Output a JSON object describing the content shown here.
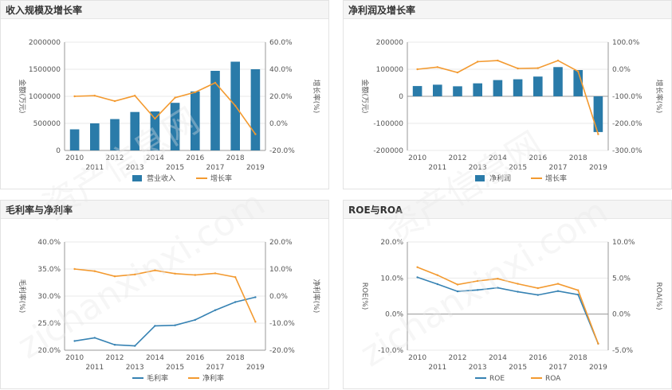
{
  "watermark": {
    "site": "zichanxinxi.com",
    "brand": "资产信息网"
  },
  "colors": {
    "bar": "#2a7ba9",
    "orange": "#f39a30",
    "blue": "#3682b3",
    "axis": "#9a9a9a",
    "grid": "#eaeaea",
    "text": "#555555"
  },
  "chart_data": [
    {
      "type": "bar",
      "title": "收入规模及增长率",
      "categories": [
        "2010",
        "2011",
        "2012",
        "2013",
        "2014",
        "2015",
        "2016",
        "2017",
        "2018",
        "2019"
      ],
      "ylabel": "金额(万元)",
      "y2label": "增长率(%)",
      "ylim": [
        0,
        2000000
      ],
      "y2lim": [
        -20,
        60
      ],
      "y_ticks": [
        "0",
        "500000",
        "1000000",
        "1500000",
        "2000000"
      ],
      "y2_ticks": [
        "-20.0%",
        "0.0%",
        "20.0%",
        "40.0%",
        "60.0%"
      ],
      "series": [
        {
          "name": "营业收入",
          "kind": "bar",
          "axis": "left",
          "values": [
            390000,
            500000,
            580000,
            710000,
            720000,
            880000,
            1090000,
            1470000,
            1640000,
            1500000
          ]
        },
        {
          "name": "增长率",
          "kind": "line",
          "axis": "right",
          "values": [
            20,
            20.5,
            16.5,
            20.5,
            3.5,
            19,
            23,
            30,
            13,
            -8
          ]
        }
      ],
      "legend": "bottom",
      "grid": true
    },
    {
      "type": "bar",
      "title": "净利润及增长率",
      "categories": [
        "2010",
        "2011",
        "2012",
        "2013",
        "2014",
        "2015",
        "2016",
        "2017",
        "2018",
        "2019"
      ],
      "ylabel": "金额(万元)",
      "y2label": "增长率(%)",
      "ylim": [
        -200000,
        200000
      ],
      "y2lim": [
        -300,
        100
      ],
      "y_ticks": [
        "-200000",
        "-100000",
        "0",
        "100000",
        "200000"
      ],
      "y2_ticks": [
        "-300.0%",
        "-200.0%",
        "-100.0%",
        "0.0%",
        "100.0%"
      ],
      "series": [
        {
          "name": "净利润",
          "kind": "bar",
          "axis": "left",
          "values": [
            38000,
            43000,
            37000,
            48000,
            60000,
            63000,
            73000,
            108000,
            97000,
            -132000
          ]
        },
        {
          "name": "增长率",
          "kind": "line",
          "axis": "right",
          "values": [
            0,
            8,
            -12,
            28,
            32,
            3,
            4,
            32,
            -8,
            -240
          ]
        }
      ],
      "legend": "bottom",
      "grid": true
    },
    {
      "type": "line",
      "title": "毛利率与净利率",
      "categories": [
        "2010",
        "2011",
        "2012",
        "2013",
        "2014",
        "2015",
        "2016",
        "2017",
        "2018",
        "2019"
      ],
      "ylabel": "毛利率(%)",
      "y2label": "净利率(%)",
      "ylim": [
        20,
        40
      ],
      "y2lim": [
        -20,
        20
      ],
      "y_ticks": [
        "20.0%",
        "25.0%",
        "30.0%",
        "35.0%",
        "40.0%"
      ],
      "y2_ticks": [
        "-20.0%",
        "-10.0%",
        "0.0%",
        "10.0%",
        "20.0%"
      ],
      "series": [
        {
          "name": "毛利率",
          "kind": "line",
          "axis": "left",
          "values": [
            21.7,
            22.3,
            21,
            20.8,
            24.5,
            24.6,
            25.6,
            27.4,
            28.9,
            29.8
          ]
        },
        {
          "name": "净利率",
          "kind": "line",
          "axis": "right",
          "values": [
            10,
            9.2,
            7.3,
            8,
            9.5,
            8.3,
            7.8,
            8.4,
            7,
            -9.5
          ]
        }
      ],
      "legend": "bottom",
      "grid": true
    },
    {
      "type": "line",
      "title": "ROE与ROA",
      "categories": [
        "2010",
        "2011",
        "2012",
        "2013",
        "2014",
        "2015",
        "2016",
        "2017",
        "2018",
        "2019"
      ],
      "ylabel": "ROE(%)",
      "y2label": "ROA(%)",
      "ylim": [
        -10,
        20
      ],
      "y2lim": [
        -5,
        10
      ],
      "y_ticks": [
        "-10.0%",
        "0.0%",
        "10.0%",
        "20.0%"
      ],
      "y2_ticks": [
        "-5.0%",
        "0.0%",
        "5.0%",
        "10.0%"
      ],
      "series": [
        {
          "name": "ROE",
          "kind": "line",
          "axis": "left",
          "values": [
            10.2,
            8.3,
            6.3,
            6.7,
            7.3,
            6.2,
            5.3,
            6.4,
            5.4,
            -8.2
          ]
        },
        {
          "name": "ROA",
          "kind": "line",
          "axis": "right",
          "values": [
            6.5,
            5.4,
            4.1,
            4.6,
            4.9,
            4.2,
            3.6,
            4.2,
            3.3,
            -4.1
          ]
        }
      ],
      "legend": "bottom",
      "grid": true
    }
  ]
}
